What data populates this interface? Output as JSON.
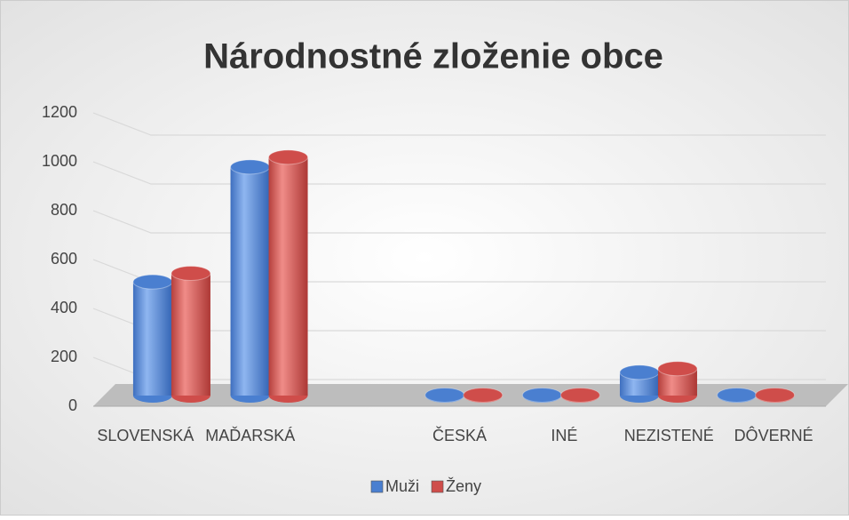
{
  "chart_data": {
    "type": "bar",
    "title": "Národnostné zloženie obce",
    "categories": [
      "SLOVENSKÁ",
      "MAĎARSKÁ",
      null,
      "ČESKÁ",
      "INÉ",
      "NEZISTENÉ",
      "DÔVERNÉ"
    ],
    "series": [
      {
        "name": "Muži",
        "color": "#4a7fd0",
        "values": [
          465,
          935,
          null,
          2,
          2,
          95,
          2
        ]
      },
      {
        "name": "Ženy",
        "color": "#cf4d4a",
        "values": [
          500,
          975,
          null,
          2,
          2,
          110,
          2
        ]
      }
    ],
    "ylim": [
      0,
      1200
    ],
    "yticks": [
      0,
      200,
      400,
      600,
      800,
      1000,
      1200
    ],
    "grid": true,
    "legend": "bottom"
  }
}
